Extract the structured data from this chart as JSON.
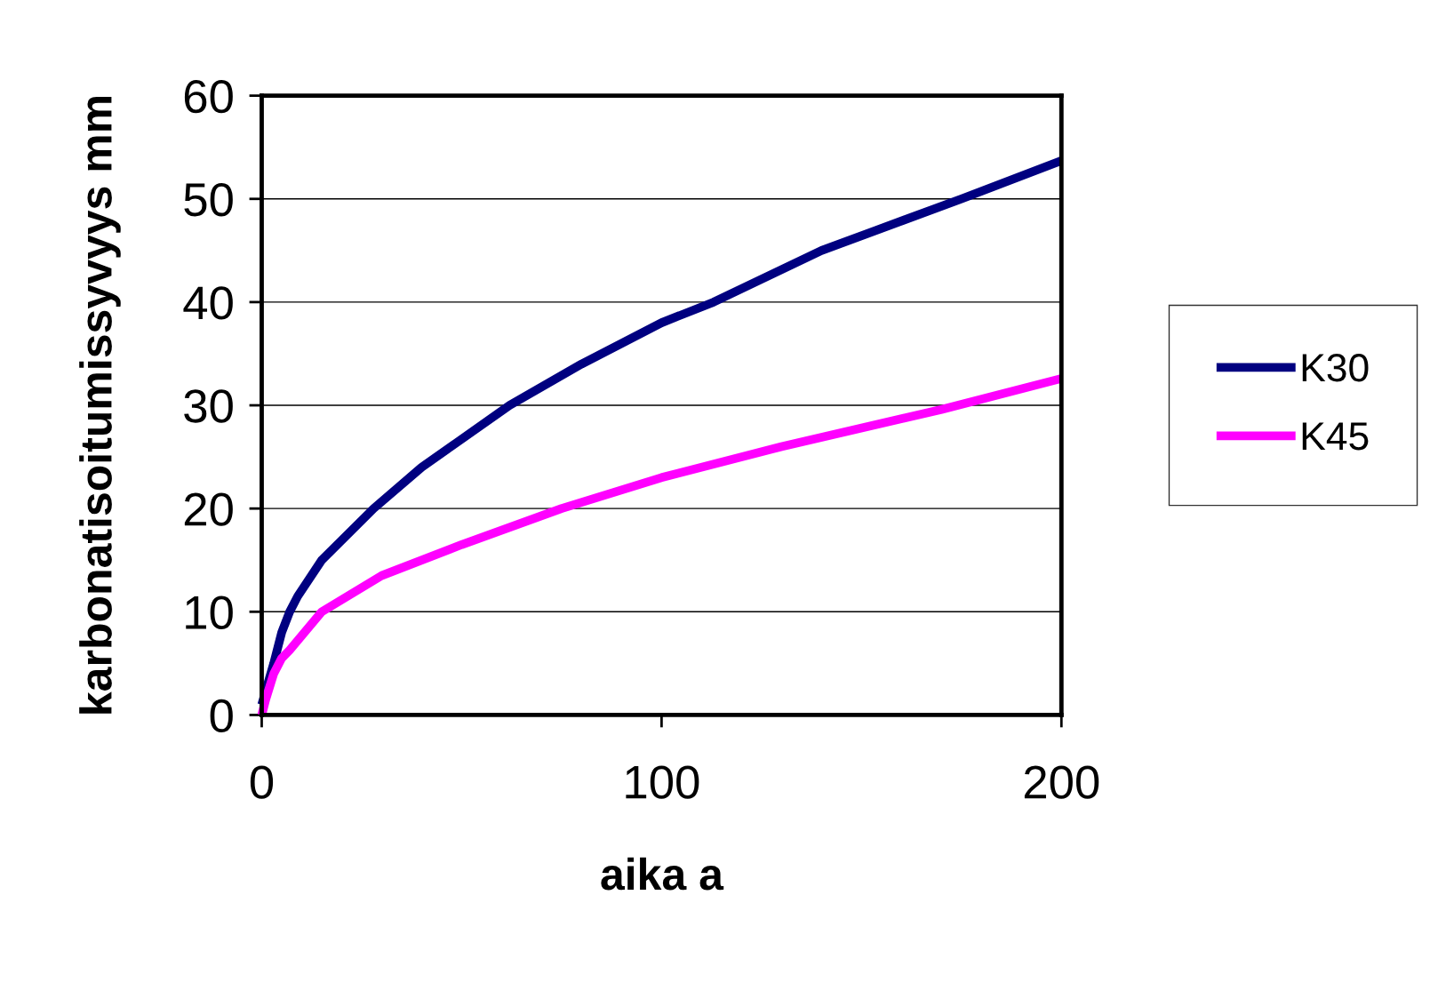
{
  "chart_data": {
    "type": "line",
    "xlabel": "aika a",
    "ylabel": "karbonatisoitumissyvyys mm",
    "xlim": [
      0,
      200
    ],
    "xticks": [
      0,
      100,
      200
    ],
    "ylim": [
      0,
      60
    ],
    "yticks": [
      0,
      10,
      20,
      30,
      40,
      50,
      60
    ],
    "grid": "y",
    "legend": "right",
    "marker": "none",
    "line_style": "solid",
    "series": [
      {
        "name": "K30",
        "color": "#000080",
        "x": [
          0,
          3,
          5,
          7,
          9,
          15,
          28,
          40,
          62,
          80,
          100,
          113,
          140,
          175,
          200
        ],
        "values": [
          1,
          5,
          8,
          10,
          11.5,
          15,
          20,
          24,
          30,
          34,
          38,
          40,
          45,
          50,
          53.7
        ]
      },
      {
        "name": "K45",
        "color": "#ff00ff",
        "x": [
          0,
          1,
          3,
          5,
          7,
          15,
          30,
          50,
          75,
          100,
          130,
          170,
          200
        ],
        "values": [
          0,
          1.5,
          4,
          5.5,
          6.3,
          10,
          13.5,
          16.5,
          20,
          23,
          26,
          29.6,
          32.6
        ]
      }
    ]
  }
}
